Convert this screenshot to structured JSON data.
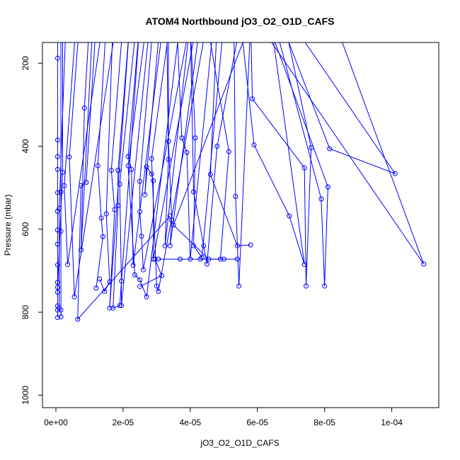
{
  "chart_data": {
    "type": "line",
    "title": "ATOM4 Northbound jO3_O2_O1D_CAFS",
    "xlabel": "jO3_O2_O1D_CAFS",
    "ylabel": "Pressure (mbar)",
    "xlim": [
      -4e-06,
      0.000114
    ],
    "ylim": [
      1030,
      150
    ],
    "y_reversed": true,
    "grid": false,
    "line_color": "#0000ff",
    "x_ticks": [
      {
        "value": 0,
        "label": "0e+00"
      },
      {
        "value": 2e-05,
        "label": "2e-05"
      },
      {
        "value": 4e-05,
        "label": "4e-05"
      },
      {
        "value": 6e-05,
        "label": "6e-05"
      },
      {
        "value": 8e-05,
        "label": "8e-05"
      },
      {
        "value": 0.0001,
        "label": "1e-04"
      }
    ],
    "y_ticks": [
      {
        "value": 200,
        "label": "200"
      },
      {
        "value": 400,
        "label": "400"
      },
      {
        "value": 600,
        "label": "600"
      },
      {
        "value": 800,
        "label": "800"
      },
      {
        "value": 1000,
        "label": "1000"
      }
    ],
    "series": [
      {
        "points": [
          [
            5e-07,
            100
          ],
          [
            5e-07,
            188
          ],
          [
            5e-07,
            385
          ],
          [
            5e-07,
            425
          ],
          [
            5e-07,
            456
          ],
          [
            5e-07,
            512
          ],
          [
            5e-07,
            557
          ],
          [
            5e-07,
            602
          ],
          [
            5e-07,
            636
          ],
          [
            5e-07,
            686
          ],
          [
            5e-07,
            728
          ],
          [
            5e-07,
            752
          ],
          [
            5e-07,
            785
          ],
          [
            5e-07,
            795
          ],
          [
            5e-07,
            813
          ]
        ]
      },
      {
        "points": [
          [
            1.5e-06,
            100
          ],
          [
            1.5e-06,
            510
          ],
          [
            1.5e-06,
            605
          ],
          [
            1.5e-06,
            795
          ],
          [
            1.5e-06,
            811
          ]
        ]
      },
      {
        "points": [
          [
            3e-06,
            100
          ],
          [
            1e-06,
            550
          ],
          [
            1e-06,
            790
          ]
        ]
      },
      {
        "points": [
          [
            2e-06,
            100
          ],
          [
            2e-06,
            463
          ],
          [
            5e-07,
            740
          ]
        ]
      },
      {
        "points": [
          [
            6e-06,
            100
          ],
          [
            2.5e-06,
            495
          ],
          [
            3.5e-06,
            685
          ],
          [
            1.4e-05,
            100
          ]
        ]
      },
      {
        "points": [
          [
            7e-06,
            100
          ],
          [
            4e-06,
            426
          ],
          [
            5.5e-06,
            763
          ],
          [
            1.8e-05,
            100
          ]
        ]
      },
      {
        "points": [
          [
            1e-05,
            100
          ],
          [
            8.5e-06,
            308
          ],
          [
            7.5e-06,
            650
          ],
          [
            1.1e-05,
            100
          ]
        ]
      },
      {
        "points": [
          [
            1.2e-05,
            100
          ],
          [
            9e-06,
            487
          ],
          [
            7.5e-06,
            495
          ],
          [
            6.5e-06,
            817
          ],
          [
            3.4e-05,
            568
          ]
        ]
      },
      {
        "points": [
          [
            1.5e-05,
            100
          ],
          [
            1.25e-05,
            447
          ],
          [
            1.35e-05,
            573
          ],
          [
            1.4e-05,
            618
          ],
          [
            1.2e-05,
            742
          ]
        ]
      },
      {
        "points": [
          [
            1.7e-05,
            100
          ],
          [
            1.5e-05,
            563
          ],
          [
            1.6e-05,
            727
          ],
          [
            1.45e-05,
            750
          ],
          [
            1.3e-05,
            720
          ]
        ]
      },
      {
        "points": [
          [
            2e-05,
            100
          ],
          [
            1.65e-05,
            458
          ],
          [
            1.75e-05,
            553
          ],
          [
            1.6e-05,
            790
          ],
          [
            2.2e-05,
            100
          ]
        ]
      },
      {
        "points": [
          [
            2.2e-05,
            100
          ],
          [
            1.85e-05,
            458
          ],
          [
            1.85e-05,
            543
          ],
          [
            1.7e-05,
            790
          ],
          [
            1.9e-05,
            784
          ],
          [
            2.5e-05,
            100
          ]
        ]
      },
      {
        "points": [
          [
            2.4e-05,
            100
          ],
          [
            1.9e-05,
            491
          ],
          [
            1.95e-05,
            725
          ],
          [
            1.95e-05,
            784
          ],
          [
            2.8e-05,
            100
          ]
        ]
      },
      {
        "points": [
          [
            2.5e-05,
            100
          ],
          [
            2.15e-05,
            425
          ],
          [
            2.25e-05,
            456
          ],
          [
            2.3e-05,
            687
          ],
          [
            3.2e-05,
            100
          ]
        ]
      },
      {
        "points": [
          [
            2.7e-05,
            100
          ],
          [
            2.15e-05,
            447
          ],
          [
            2.35e-05,
            710
          ],
          [
            2.5e-05,
            722
          ],
          [
            2.7e-05,
            763
          ],
          [
            3.7e-05,
            100
          ]
        ]
      },
      {
        "points": [
          [
            2.9e-05,
            100
          ],
          [
            2.5e-05,
            485
          ],
          [
            2.5e-05,
            558
          ],
          [
            2.55e-05,
            617
          ],
          [
            2.6e-05,
            698
          ],
          [
            4e-05,
            100
          ]
        ]
      },
      {
        "points": [
          [
            3.1e-05,
            100
          ],
          [
            2.65e-05,
            517
          ],
          [
            2.7e-05,
            450
          ],
          [
            2.85e-05,
            467
          ],
          [
            2.9e-05,
            483
          ],
          [
            2.9e-05,
            672
          ],
          [
            4.2e-05,
            100
          ]
        ]
      },
      {
        "points": [
          [
            3.4e-05,
            100
          ],
          [
            2.85e-05,
            430
          ],
          [
            3e-05,
            737
          ],
          [
            3.05e-05,
            750
          ],
          [
            4.5e-05,
            100
          ]
        ]
      },
      {
        "points": [
          [
            3.3e-05,
            100
          ],
          [
            3.35e-05,
            432
          ],
          [
            3.25e-05,
            640
          ],
          [
            4e-05,
            100
          ]
        ]
      },
      {
        "points": [
          [
            3.35e-05,
            100
          ],
          [
            3.35e-05,
            388
          ],
          [
            3.45e-05,
            578
          ],
          [
            3.4e-05,
            640
          ],
          [
            4.3e-05,
            100
          ]
        ]
      },
      {
        "points": [
          [
            3.6e-05,
            100
          ],
          [
            3.75e-05,
            380
          ],
          [
            3.9e-05,
            415
          ],
          [
            4e-05,
            672
          ],
          [
            4.7e-05,
            100
          ]
        ]
      },
      {
        "points": [
          [
            4e-05,
            100
          ],
          [
            4.15e-05,
            380
          ],
          [
            4.1e-05,
            640
          ],
          [
            4.35e-05,
            668
          ],
          [
            5e-05,
            100
          ]
        ]
      },
      {
        "points": [
          [
            4e-05,
            100
          ],
          [
            4.1e-05,
            510
          ],
          [
            4.4e-05,
            640
          ],
          [
            4.5e-05,
            684
          ],
          [
            4.8e-05,
            400
          ],
          [
            5.5e-05,
            100
          ]
        ]
      },
      {
        "points": [
          [
            4.5e-05,
            100
          ],
          [
            5.15e-05,
            413
          ],
          [
            4.9e-05,
            672
          ],
          [
            4.55e-05,
            672
          ],
          [
            3.5e-05,
            590
          ],
          [
            5.8e-05,
            100
          ]
        ]
      },
      {
        "points": [
          [
            4.8e-05,
            100
          ],
          [
            4.6e-05,
            468
          ],
          [
            5.4e-05,
            640
          ],
          [
            5.8e-05,
            638
          ]
        ]
      },
      {
        "points": [
          [
            5.3e-05,
            100
          ],
          [
            5.35e-05,
            521
          ],
          [
            5.45e-05,
            737
          ],
          [
            5.8e-05,
            100
          ]
        ]
      },
      {
        "points": [
          [
            5.5e-05,
            100
          ],
          [
            5.9e-05,
            397
          ],
          [
            6.95e-05,
            568
          ],
          [
            7.4e-05,
            685
          ],
          [
            6.4e-05,
            100
          ]
        ]
      },
      {
        "points": [
          [
            5.8e-05,
            100
          ],
          [
            5.85e-05,
            286
          ],
          [
            7.4e-05,
            452
          ],
          [
            7.45e-05,
            737
          ],
          [
            7.6e-05,
            404
          ],
          [
            6.8e-05,
            100
          ]
        ]
      },
      {
        "points": [
          [
            6.3e-05,
            100
          ],
          [
            8.1e-05,
            498
          ],
          [
            8e-05,
            737
          ],
          [
            7.9e-05,
            527
          ],
          [
            6.5e-05,
            100
          ]
        ]
      },
      {
        "points": [
          [
            7e-05,
            100
          ],
          [
            0.000101,
            466
          ],
          [
            8.15e-05,
            406
          ],
          [
            6.7e-05,
            100
          ]
        ]
      },
      {
        "points": [
          [
            6e-05,
            100
          ],
          [
            0.0001095,
            684
          ],
          [
            8.3e-05,
            100
          ]
        ]
      },
      {
        "points": [
          [
            3.05e-05,
            672
          ],
          [
            3.7e-05,
            672
          ],
          [
            4.3e-05,
            672
          ],
          [
            5e-05,
            672
          ],
          [
            5.4e-05,
            672
          ]
        ]
      },
      {
        "points": [
          [
            2.95e-05,
            672
          ],
          [
            3.15e-05,
            712
          ],
          [
            2.5e-05,
            738
          ]
        ]
      }
    ]
  }
}
